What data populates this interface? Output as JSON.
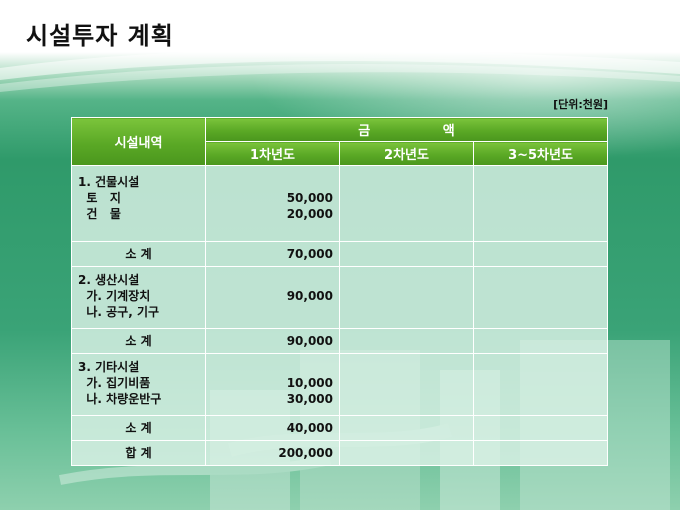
{
  "title": "시설투자 계획",
  "unit_note": "[단위:천원]",
  "table": {
    "header": {
      "name": "시설내역",
      "amount": "금 액",
      "years": [
        "1차년도",
        "2차년도",
        "3~5차년도"
      ]
    },
    "groups": [
      {
        "lines": [
          "1. 건물시설",
          "  토   지",
          "  건   물"
        ],
        "amounts": [
          "",
          "50,000",
          "20,000"
        ]
      },
      {
        "subtotal_label": "소  계",
        "subtotal_amount": "70,000"
      },
      {
        "lines": [
          "2. 생산시설",
          "  가. 기계장치",
          "  나. 공구, 기구"
        ],
        "amounts": [
          "",
          "90,000",
          ""
        ]
      },
      {
        "subtotal_label": "소   계",
        "subtotal_amount": "90,000"
      },
      {
        "lines": [
          "3. 기타시설",
          "  가. 집기비품",
          "  나. 차량운반구"
        ],
        "amounts": [
          "",
          "10,000",
          "30,000"
        ]
      },
      {
        "subtotal_label": "소  계",
        "subtotal_amount": "40,000"
      },
      {
        "subtotal_label": "합  계",
        "subtotal_amount": "200,000"
      }
    ]
  }
}
